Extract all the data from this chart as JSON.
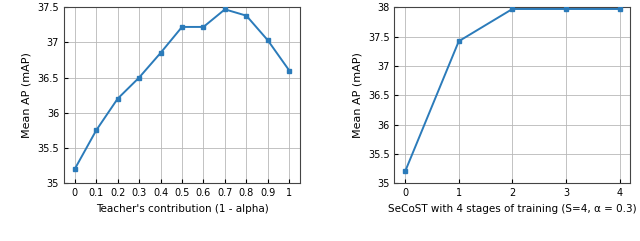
{
  "plot1": {
    "x": [
      0,
      0.1,
      0.2,
      0.3,
      0.4,
      0.5,
      0.6,
      0.7,
      0.8,
      0.9,
      1.0
    ],
    "y": [
      35.2,
      35.75,
      36.2,
      36.5,
      36.85,
      37.22,
      37.22,
      37.47,
      37.38,
      37.03,
      36.6
    ],
    "xlabel": "Teacher's contribution (1 - alpha)",
    "ylabel": "Mean AP (mAP)",
    "xlim": [
      -0.05,
      1.05
    ],
    "ylim": [
      35,
      37.5
    ],
    "xticks": [
      0,
      0.1,
      0.2,
      0.3,
      0.4,
      0.5,
      0.6,
      0.7,
      0.8,
      0.9,
      1
    ],
    "xticklabels": [
      "0",
      "0.1",
      "0.2",
      "0.3",
      "0.4",
      "0.5",
      "0.6",
      "0.7",
      "0.8",
      "0.9",
      "1"
    ],
    "yticks": [
      35,
      35.5,
      36,
      36.5,
      37,
      37.5
    ],
    "yticklabels": [
      "35",
      "35.5",
      "36",
      "36.5",
      "37",
      "37.5"
    ],
    "color": "#2b7bba",
    "marker": "s",
    "markersize": 3.5
  },
  "plot2": {
    "x": [
      0,
      1,
      2,
      3,
      4
    ],
    "y": [
      35.2,
      37.42,
      37.97,
      37.97,
      37.97
    ],
    "xlabel": "SeCoST with 4 stages of training (S=4, α = 0.3)",
    "ylabel": "Mean AP (mAP)",
    "xlim": [
      -0.2,
      4.2
    ],
    "ylim": [
      35,
      38
    ],
    "xticks": [
      0,
      1,
      2,
      3,
      4
    ],
    "xticklabels": [
      "0",
      "1",
      "2",
      "3",
      "4"
    ],
    "yticks": [
      35,
      35.5,
      36,
      36.5,
      37,
      37.5,
      38
    ],
    "yticklabels": [
      "35",
      "35.5",
      "36",
      "36.5",
      "37",
      "37.5",
      "38"
    ],
    "color": "#2b7bba",
    "marker": "s",
    "markersize": 3.5
  },
  "background_color": "#ffffff",
  "grid_color": "#b8b8b8",
  "line_width": 1.4
}
